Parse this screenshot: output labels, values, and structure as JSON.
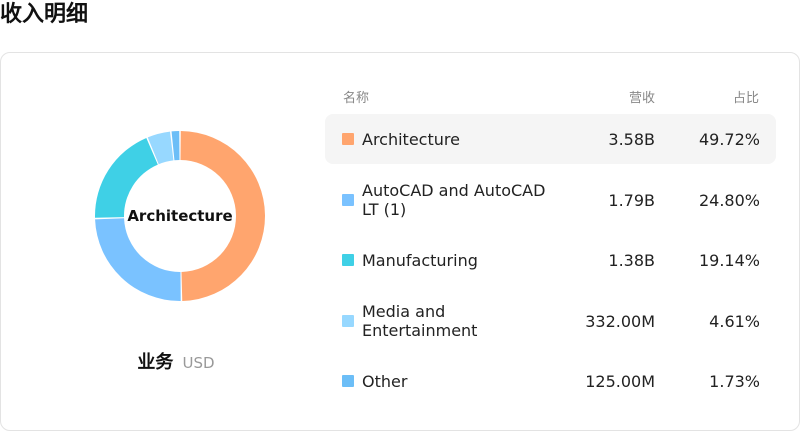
{
  "page": {
    "title": "收入明细"
  },
  "chart": {
    "center_label": "Architecture",
    "caption_main": "业务",
    "caption_unit": "USD"
  },
  "table": {
    "headers": {
      "name": "名称",
      "revenue": "营收",
      "share": "占比"
    },
    "rows": [
      {
        "name": "Architecture",
        "revenue": "3.58B",
        "share": "49.72%",
        "color": "#FFA56E"
      },
      {
        "name": "AutoCAD and AutoCAD LT (1)",
        "revenue": "1.79B",
        "share": "24.80%",
        "color": "#7AC2FF"
      },
      {
        "name": "Manufacturing",
        "revenue": "1.38B",
        "share": "19.14%",
        "color": "#3FD0E6"
      },
      {
        "name": "Media and Entertainment",
        "revenue": "332.00M",
        "share": "4.61%",
        "color": "#97D8FF"
      },
      {
        "name": "Other",
        "revenue": "125.00M",
        "share": "1.73%",
        "color": "#6CBEF7"
      }
    ]
  },
  "chart_data": {
    "type": "pie",
    "categories": [
      "Architecture",
      "AutoCAD and AutoCAD LT (1)",
      "Manufacturing",
      "Media and Entertainment",
      "Other"
    ],
    "values": [
      49.72,
      24.8,
      19.14,
      4.61,
      1.73
    ],
    "colors": [
      "#FFA56E",
      "#7AC2FF",
      "#3FD0E6",
      "#97D8FF",
      "#6CBEF7"
    ],
    "title": ""
  }
}
